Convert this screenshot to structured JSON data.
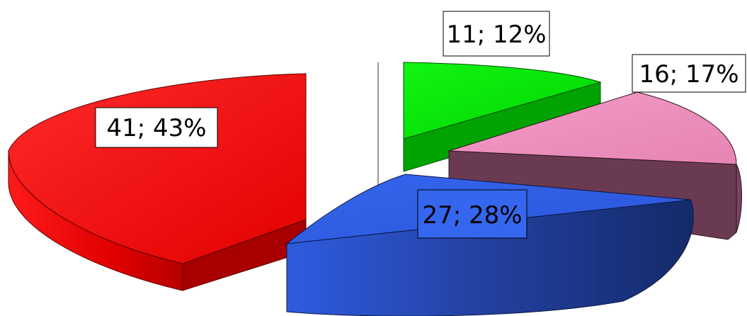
{
  "chart_data": {
    "type": "pie",
    "style": "3d-exploded",
    "slices": [
      {
        "value": 41,
        "percent": 43,
        "label": "41; 43%",
        "color": "#ff0000"
      },
      {
        "value": 11,
        "percent": 12,
        "label": "11; 12%",
        "color": "#00e000"
      },
      {
        "value": 16,
        "percent": 17,
        "label": "16; 17%",
        "color": "#ee8fbd"
      },
      {
        "value": 27,
        "percent": 28,
        "label": "27; 28%",
        "color": "#2f5fe6"
      }
    ]
  }
}
